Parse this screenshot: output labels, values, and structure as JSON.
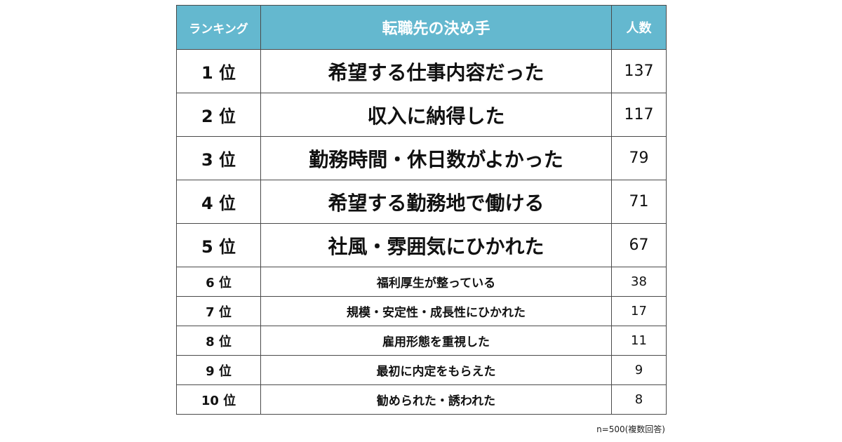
{
  "header": {
    "rank": "ランキング",
    "reason": "転職先の決め手",
    "count": "人数"
  },
  "rows": [
    {
      "rank": "1 位",
      "reason": "希望する仕事内容だった",
      "count": "137",
      "size": "big"
    },
    {
      "rank": "2 位",
      "reason": "収入に納得した",
      "count": "117",
      "size": "big"
    },
    {
      "rank": "3 位",
      "reason": "勤務時間・休日数がよかった",
      "count": "79",
      "size": "big"
    },
    {
      "rank": "4 位",
      "reason": "希望する勤務地で働ける",
      "count": "71",
      "size": "big"
    },
    {
      "rank": "5 位",
      "reason": "社風・雰囲気にひかれた",
      "count": "67",
      "size": "big"
    },
    {
      "rank": "6 位",
      "reason": "福利厚生が整っている",
      "count": "38",
      "size": "small"
    },
    {
      "rank": "7 位",
      "reason": "規模・安定性・成長性にひかれた",
      "count": "17",
      "size": "small"
    },
    {
      "rank": "8 位",
      "reason": "雇用形態を重視した",
      "count": "11",
      "size": "small"
    },
    {
      "rank": "9 位",
      "reason": "最初に内定をもらえた",
      "count": "9",
      "size": "small"
    },
    {
      "rank": "10 位",
      "reason": "勧められた・誘われた",
      "count": "8",
      "size": "small"
    }
  ],
  "note": "n=500(複数回答)",
  "colors": {
    "header_bg": "#64b8cf",
    "header_text": "#ffffff",
    "border": "#4a4a4a"
  }
}
